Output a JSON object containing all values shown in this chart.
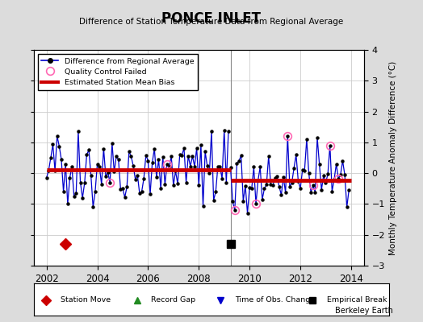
{
  "title": "PONCE INLET",
  "subtitle": "Difference of Station Temperature Data from Regional Average",
  "ylabel": "Monthly Temperature Anomaly Difference (°C)",
  "watermark": "Berkeley Earth",
  "xlim": [
    2001.5,
    2014.5
  ],
  "ylim": [
    -3,
    4
  ],
  "yticks": [
    -3,
    -2,
    -1,
    0,
    1,
    2,
    3,
    4
  ],
  "xticks": [
    2002,
    2004,
    2006,
    2008,
    2010,
    2012,
    2014
  ],
  "bg_color": "#dcdcdc",
  "plot_bg_color": "#ffffff",
  "line_color": "#0000cc",
  "bias_color": "#cc0000",
  "break_x": 2009.25,
  "segment1_bias": 0.12,
  "segment2_bias": -0.22,
  "station_move_x": 2002.75,
  "station_move_y": -2.3,
  "empirical_break_x": 2009.25,
  "empirical_break_y": -2.3
}
